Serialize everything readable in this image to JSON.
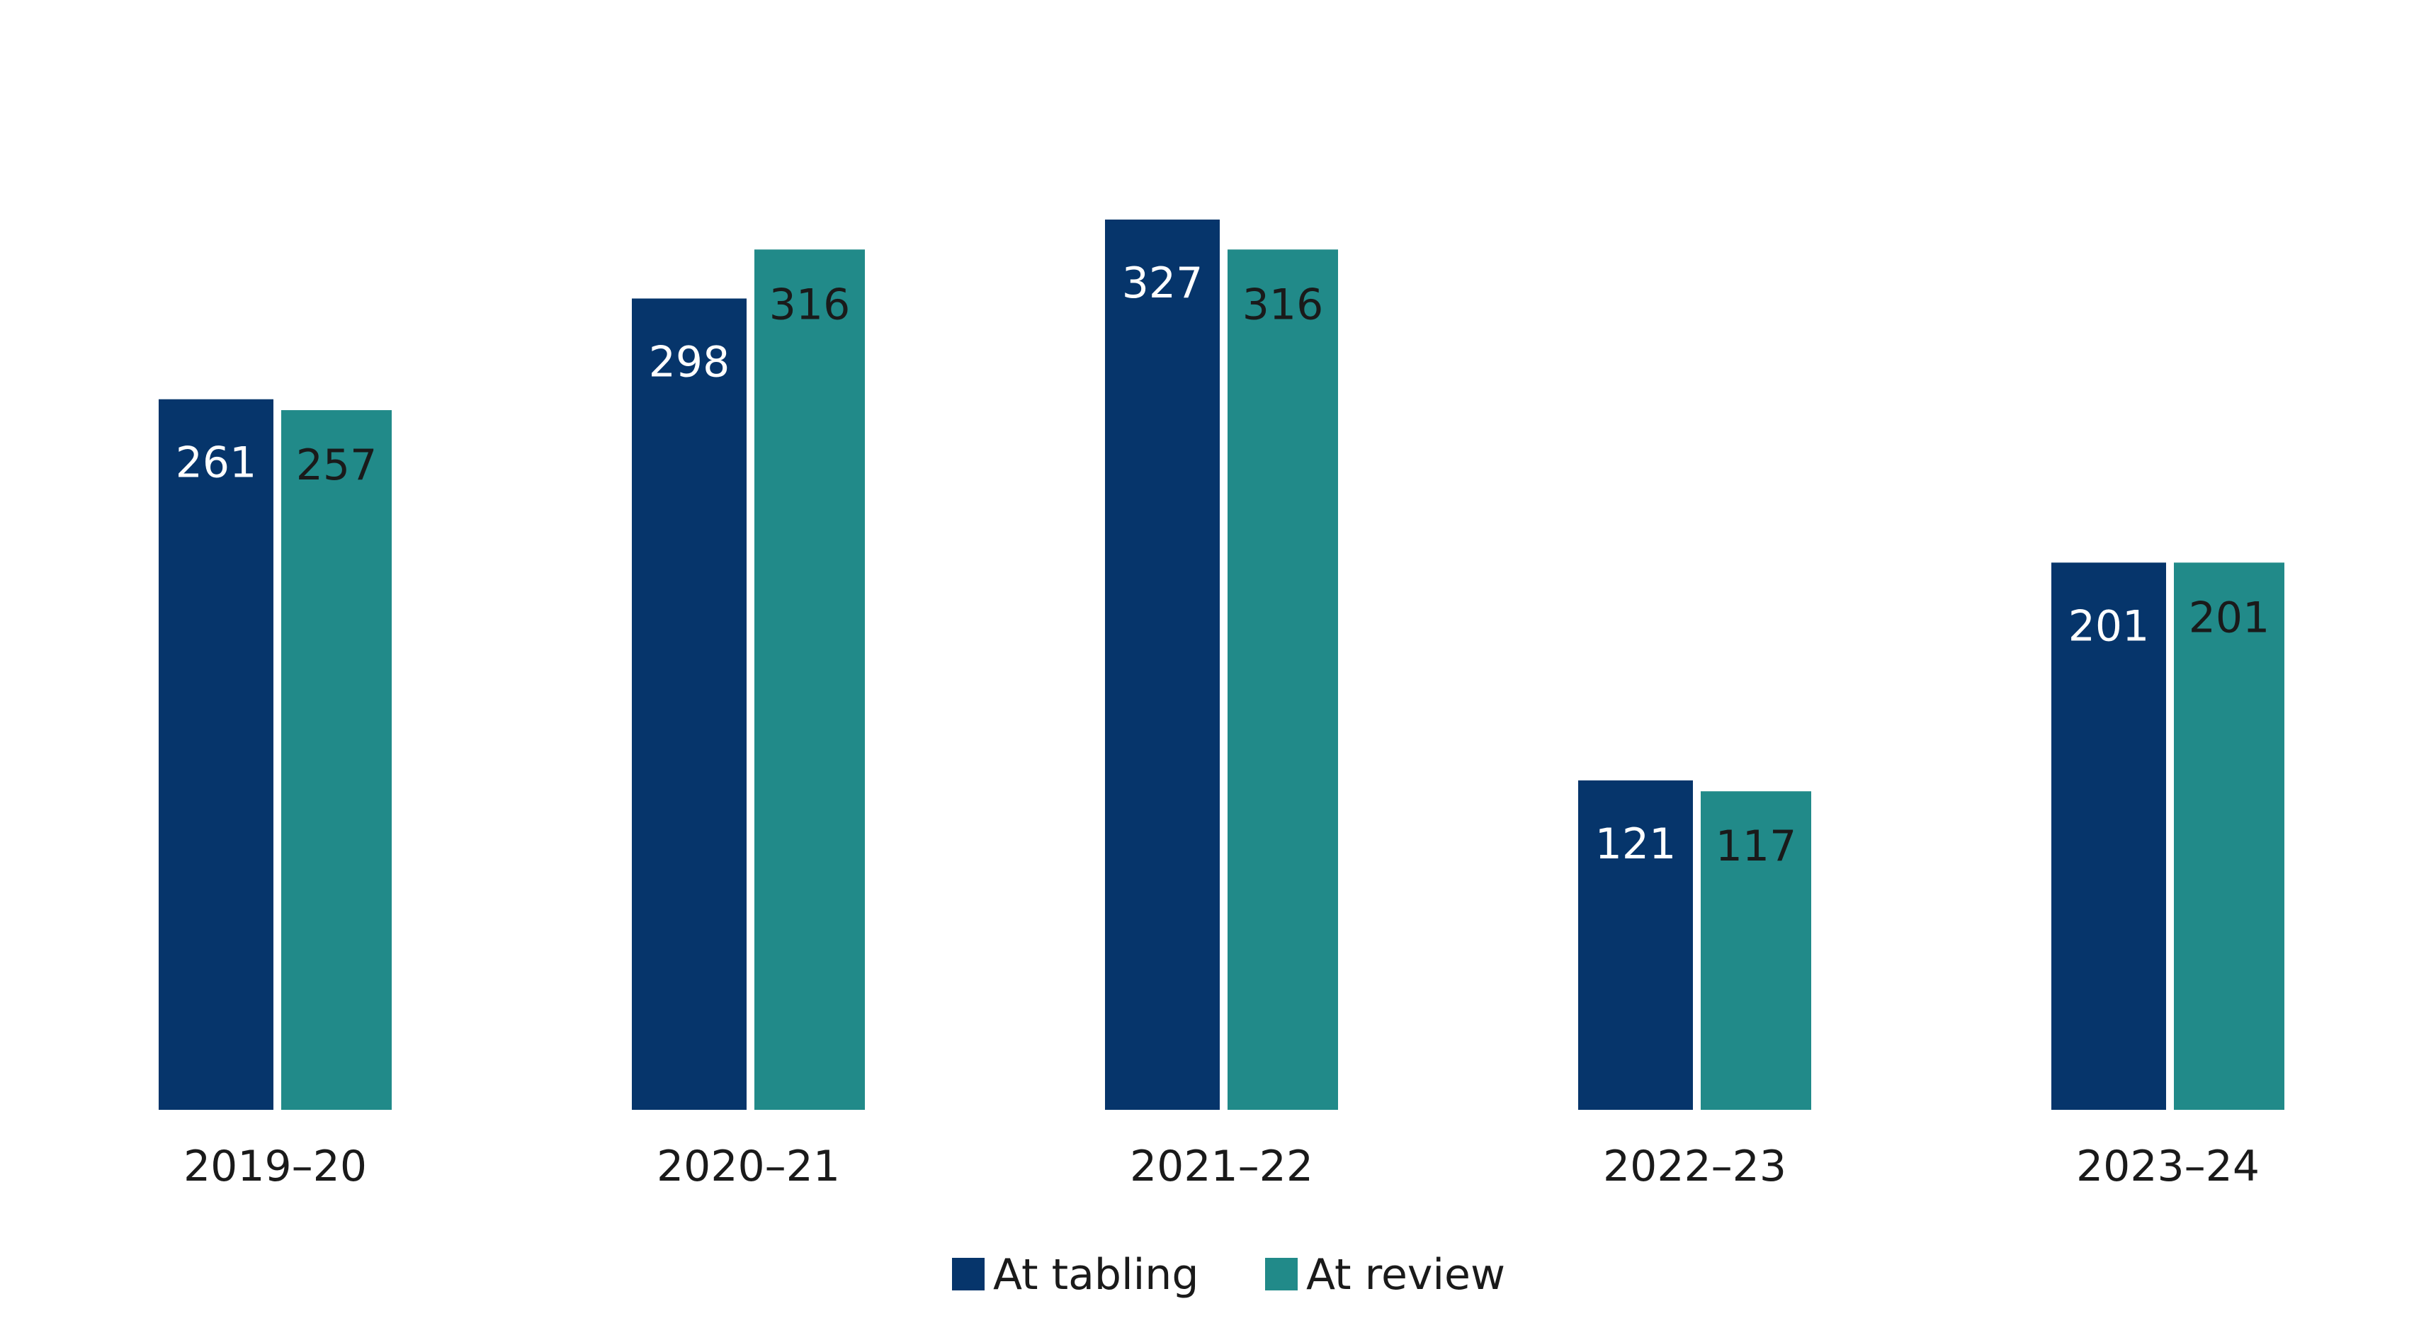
{
  "colors": {
    "at_tabling": "#06356b",
    "at_review": "#218a89",
    "label_on_tabling": "#ffffff",
    "label_on_review": "#1a1a1a"
  },
  "chart_data": {
    "type": "bar",
    "title": "",
    "xlabel": "",
    "ylabel": "",
    "ylim": [
      0,
      327
    ],
    "grid": false,
    "legend_position": "bottom-center",
    "categories": [
      "2019–20",
      "2020–21",
      "2021–22",
      "2022–23",
      "2023–24"
    ],
    "series": [
      {
        "name": "At tabling",
        "values": [
          261,
          298,
          327,
          121,
          201
        ]
      },
      {
        "name": "At review",
        "values": [
          257,
          316,
          316,
          117,
          201
        ]
      }
    ]
  }
}
